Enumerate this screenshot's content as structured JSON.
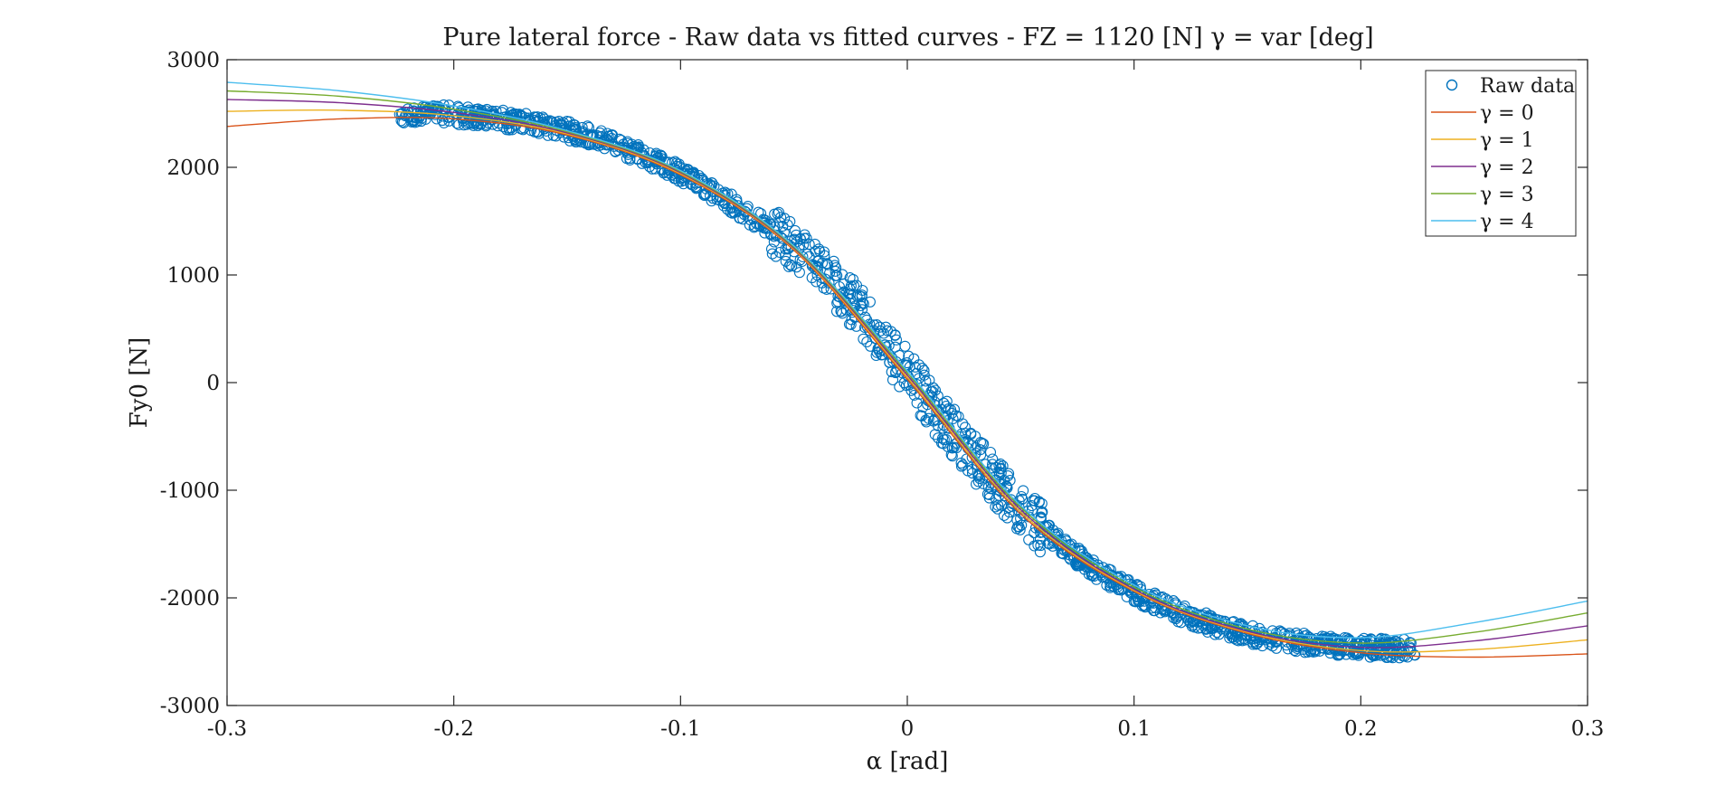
{
  "chart_data": {
    "type": "line",
    "title": "Pure lateral force - Raw data vs fitted curves - FZ = 1120 [N] γ = var [deg]",
    "xlabel": "α [rad]",
    "ylabel": "Fy0 [N]",
    "xlim": [
      -0.3,
      0.3
    ],
    "ylim": [
      -3000,
      3000
    ],
    "x_ticks": [
      -0.3,
      -0.2,
      -0.1,
      0,
      0.1,
      0.2,
      0.3
    ],
    "x_tick_labels": [
      "-0.3",
      "-0.2",
      "-0.1",
      "0",
      "0.1",
      "0.2",
      "0.3"
    ],
    "y_ticks": [
      -3000,
      -2000,
      -1000,
      0,
      1000,
      2000,
      3000
    ],
    "y_tick_labels": [
      "-3000",
      "-2000",
      "-1000",
      "0",
      "1000",
      "2000",
      "3000"
    ],
    "grid": false,
    "legend_position": "top-right",
    "raw_data": {
      "name": "Raw data",
      "color": "#0072BD",
      "x_range": [
        -0.224,
        0.224
      ],
      "x": [
        -0.22,
        -0.2,
        -0.18,
        -0.16,
        -0.14,
        -0.12,
        -0.1,
        -0.08,
        -0.06,
        -0.04,
        -0.02,
        0,
        0.02,
        0.04,
        0.06,
        0.08,
        0.1,
        0.12,
        0.14,
        0.16,
        0.18,
        0.2,
        0.22
      ],
      "y": [
        2500,
        2490,
        2450,
        2390,
        2290,
        2140,
        1940,
        1700,
        1420,
        1080,
        640,
        80,
        -460,
        -950,
        -1370,
        -1700,
        -1950,
        -2140,
        -2290,
        -2380,
        -2430,
        -2460,
        -2470
      ],
      "spread": 90
    },
    "series": [
      {
        "name": "γ = 0",
        "color": "#D95319",
        "x": [
          -0.3,
          -0.25,
          -0.2,
          -0.15,
          -0.1,
          -0.05,
          0,
          0.05,
          0.1,
          0.15,
          0.2,
          0.25,
          0.3
        ],
        "y": [
          2380,
          2450,
          2450,
          2300,
          1930,
          1230,
          30,
          -1220,
          -1940,
          -2330,
          -2510,
          -2550,
          -2520
        ]
      },
      {
        "name": "γ = 1",
        "color": "#EDB120",
        "x": [
          -0.3,
          -0.25,
          -0.2,
          -0.15,
          -0.1,
          -0.05,
          0,
          0.05,
          0.1,
          0.15,
          0.2,
          0.25,
          0.3
        ],
        "y": [
          2520,
          2530,
          2480,
          2310,
          1940,
          1240,
          50,
          -1200,
          -1930,
          -2320,
          -2490,
          -2480,
          -2390
        ]
      },
      {
        "name": "γ = 2",
        "color": "#7E2F8E",
        "x": [
          -0.3,
          -0.25,
          -0.2,
          -0.15,
          -0.1,
          -0.05,
          0,
          0.05,
          0.1,
          0.15,
          0.2,
          0.25,
          0.3
        ],
        "y": [
          2630,
          2600,
          2510,
          2320,
          1950,
          1250,
          70,
          -1180,
          -1920,
          -2310,
          -2460,
          -2400,
          -2260
        ]
      },
      {
        "name": "γ = 3",
        "color": "#77AC30",
        "x": [
          -0.3,
          -0.25,
          -0.2,
          -0.15,
          -0.1,
          -0.05,
          0,
          0.05,
          0.1,
          0.15,
          0.2,
          0.25,
          0.3
        ],
        "y": [
          2710,
          2660,
          2540,
          2330,
          1960,
          1260,
          90,
          -1160,
          -1900,
          -2290,
          -2420,
          -2320,
          -2140
        ]
      },
      {
        "name": "γ = 4",
        "color": "#4DBEEE",
        "x": [
          -0.3,
          -0.25,
          -0.2,
          -0.15,
          -0.1,
          -0.05,
          0,
          0.05,
          0.1,
          0.15,
          0.2,
          0.25,
          0.3
        ],
        "y": [
          2790,
          2710,
          2570,
          2340,
          1970,
          1270,
          110,
          -1140,
          -1880,
          -2260,
          -2370,
          -2230,
          -2030
        ]
      }
    ]
  }
}
